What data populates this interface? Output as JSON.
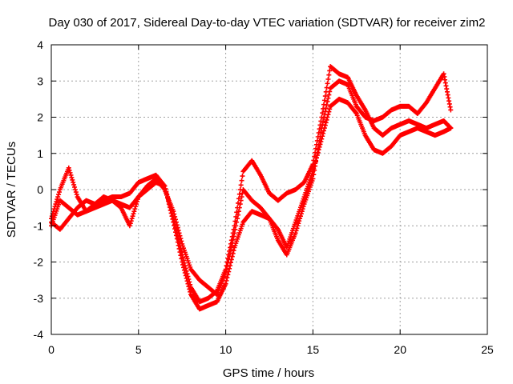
{
  "chart_data": {
    "type": "scatter",
    "title": "Day 030 of 2017, Sidereal Day-to-day VTEC variation (SDTVAR) for receiver zim2",
    "xlabel": "GPS time / hours",
    "ylabel": "SDTVAR / TECUs",
    "xlim": [
      0,
      25
    ],
    "ylim": [
      -4,
      4
    ],
    "xticks": [
      "0",
      "5",
      "10",
      "15",
      "20",
      "25"
    ],
    "yticks": [
      "-4",
      "-3",
      "-2",
      "-1",
      "0",
      "1",
      "2",
      "3",
      "4"
    ],
    "grid": true,
    "marker": "plus",
    "color": "#ff0000",
    "series": [
      {
        "x": [
          0,
          0.5,
          1,
          1.5,
          2,
          2.5,
          3,
          3.5,
          4,
          4.5,
          5,
          5.5,
          6,
          6.5,
          7,
          7.5,
          8,
          8.5,
          9,
          9.5,
          10,
          10.5,
          11,
          11.5,
          12,
          12.5,
          13,
          13.5,
          14,
          14.5,
          15,
          15.5,
          16,
          16.5,
          17,
          17.5,
          18,
          18.5,
          19,
          19.5,
          20,
          20.5,
          21,
          21.5,
          22,
          22.5,
          22.9
        ],
        "y": [
          -0.9,
          -1.1,
          -0.8,
          -0.5,
          -0.3,
          -0.4,
          -0.3,
          -0.2,
          -0.2,
          -0.1,
          0.2,
          0.3,
          0.4,
          0.1,
          -0.8,
          -1.8,
          -2.7,
          -3.1,
          -3.0,
          -2.8,
          -2.2,
          -1.0,
          0.5,
          0.8,
          0.4,
          -0.1,
          -0.3,
          -0.1,
          0.0,
          0.2,
          0.7,
          2.0,
          3.4,
          3.2,
          3.1,
          2.6,
          2.2,
          1.7,
          1.5,
          1.7,
          1.8,
          1.9,
          1.8,
          1.7,
          1.8,
          1.9,
          1.7
        ]
      },
      {
        "x": [
          0,
          0.5,
          1,
          1.5,
          2,
          2.5,
          3,
          3.5,
          4,
          4.5,
          5,
          5.5,
          6,
          6.5,
          7,
          7.5,
          8,
          8.5,
          9,
          9.5,
          10,
          10.5,
          11,
          11.5,
          12,
          12.5,
          13,
          13.5,
          14,
          14.5,
          15,
          15.5,
          16,
          16.5,
          17,
          17.5,
          18,
          18.5,
          19,
          19.5,
          20,
          20.5,
          21,
          21.5,
          22,
          22.5,
          22.9
        ],
        "y": [
          -1.0,
          -0.3,
          -0.5,
          -0.7,
          -0.6,
          -0.5,
          -0.4,
          -0.3,
          -0.4,
          -0.5,
          -0.2,
          0.0,
          0.2,
          0.1,
          -0.9,
          -2.0,
          -2.9,
          -3.3,
          -3.2,
          -3.1,
          -2.6,
          -1.6,
          -0.9,
          -0.6,
          -0.7,
          -0.8,
          -1.1,
          -1.6,
          -0.9,
          -0.2,
          0.5,
          1.4,
          2.3,
          2.5,
          2.4,
          2.1,
          1.5,
          1.1,
          1.0,
          1.2,
          1.5,
          1.6,
          1.7,
          1.6,
          1.5,
          1.6,
          1.7
        ]
      },
      {
        "x": [
          0,
          0.5,
          1,
          1.5,
          2,
          2.5,
          3,
          3.5,
          4,
          4.5,
          5,
          5.5,
          6,
          6.5,
          7,
          7.5,
          8,
          8.5,
          9,
          9.5,
          10,
          10.5,
          11,
          11.5,
          12,
          12.5,
          13,
          13.5,
          14,
          14.5,
          15,
          15.5,
          16,
          16.5,
          17,
          17.5,
          18,
          18.5,
          19,
          19.5,
          20,
          20.5,
          21,
          21.5,
          22,
          22.5,
          22.9
        ],
        "y": [
          -0.8,
          0.0,
          0.6,
          -0.2,
          -0.6,
          -0.4,
          -0.2,
          -0.3,
          -0.5,
          -1.0,
          -0.2,
          0.1,
          0.3,
          0.0,
          -0.6,
          -1.5,
          -2.2,
          -2.5,
          -2.7,
          -2.9,
          -2.3,
          -1.2,
          0.0,
          -0.3,
          -0.5,
          -0.8,
          -1.4,
          -1.8,
          -1.2,
          -0.4,
          0.3,
          1.7,
          2.8,
          3.0,
          2.9,
          2.3,
          2.0,
          1.9,
          2.0,
          2.2,
          2.3,
          2.3,
          2.1,
          2.4,
          2.8,
          3.2,
          2.2
        ]
      }
    ]
  }
}
